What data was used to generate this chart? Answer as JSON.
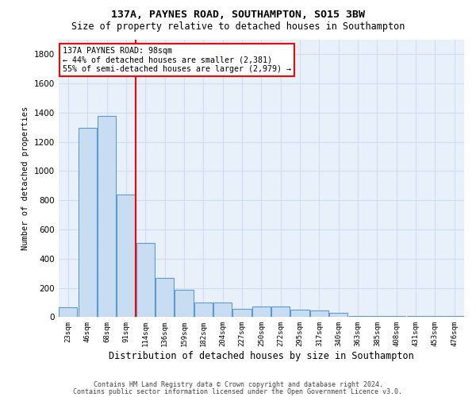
{
  "title_line1": "137A, PAYNES ROAD, SOUTHAMPTON, SO15 3BW",
  "title_line2": "Size of property relative to detached houses in Southampton",
  "xlabel": "Distribution of detached houses by size in Southampton",
  "ylabel": "Number of detached properties",
  "categories": [
    "23sqm",
    "46sqm",
    "68sqm",
    "91sqm",
    "114sqm",
    "136sqm",
    "159sqm",
    "182sqm",
    "204sqm",
    "227sqm",
    "250sqm",
    "272sqm",
    "295sqm",
    "317sqm",
    "340sqm",
    "363sqm",
    "385sqm",
    "408sqm",
    "431sqm",
    "453sqm",
    "476sqm"
  ],
  "values": [
    65,
    1295,
    1380,
    840,
    510,
    270,
    185,
    100,
    100,
    55,
    70,
    70,
    50,
    45,
    30,
    5,
    5,
    5,
    5,
    5,
    5
  ],
  "bar_color": "#c8ddf2",
  "bar_edge_color": "#5b9bd5",
  "vline_x": 3.5,
  "vline_color": "red",
  "annotation_text": "137A PAYNES ROAD: 98sqm\n← 44% of detached houses are smaller (2,381)\n55% of semi-detached houses are larger (2,979) →",
  "annotation_box_color": "red",
  "annotation_fill": "white",
  "ylim": [
    0,
    1900
  ],
  "yticks": [
    0,
    200,
    400,
    600,
    800,
    1000,
    1200,
    1400,
    1600,
    1800
  ],
  "grid_color": "#d0dff0",
  "background_color": "#e8f0fa",
  "footer_line1": "Contains HM Land Registry data © Crown copyright and database right 2024.",
  "footer_line2": "Contains public sector information licensed under the Open Government Licence v3.0."
}
